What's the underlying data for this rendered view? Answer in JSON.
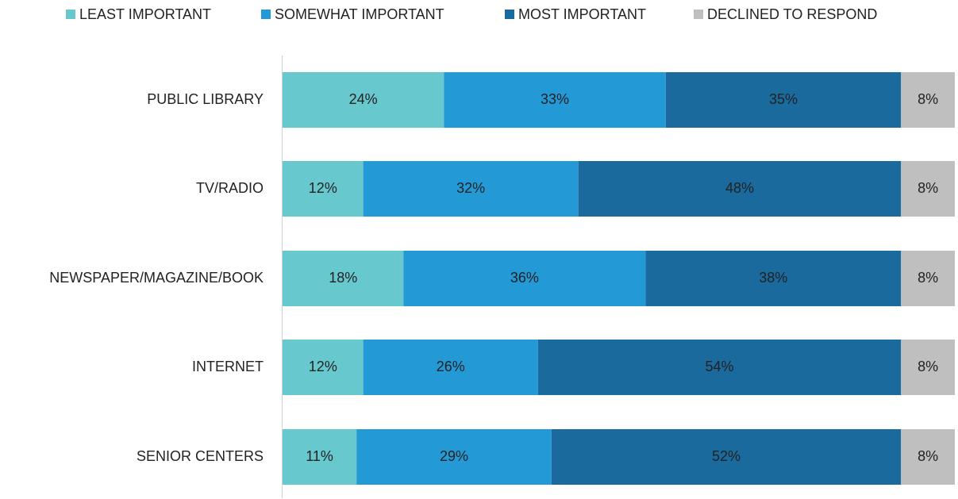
{
  "chart_data": {
    "type": "stacked-barh",
    "categories": [
      "PUBLIC LIBRARY",
      "TV/RADIO",
      "NEWSPAPER/MAGAZINE/BOOK",
      "INTERNET",
      "SENIOR CENTERS"
    ],
    "series": [
      {
        "name": "LEAST IMPORTANT",
        "color": "#67c8cd",
        "values": [
          24,
          12,
          18,
          12,
          11
        ],
        "value_labels": [
          "24%",
          "12%",
          "18%",
          "12%",
          "11%"
        ]
      },
      {
        "name": "SOMEWHAT IMPORTANT",
        "color": "#2399d6",
        "values": [
          33,
          32,
          36,
          26,
          29
        ],
        "value_labels": [
          "33%",
          "32%",
          "36%",
          "26%",
          "29%"
        ]
      },
      {
        "name": "MOST IMPORTANT",
        "color": "#1a6a9e",
        "values": [
          35,
          48,
          38,
          54,
          52
        ],
        "value_labels": [
          "35%",
          "48%",
          "38%",
          "54%",
          "52%"
        ]
      },
      {
        "name": "DECLINED TO RESPOND",
        "color": "#bfbfbf",
        "values": [
          8,
          8,
          8,
          8,
          8
        ],
        "value_labels": [
          "8%",
          "8%",
          "8%",
          "8%",
          "8%"
        ]
      }
    ],
    "legend": "top"
  }
}
